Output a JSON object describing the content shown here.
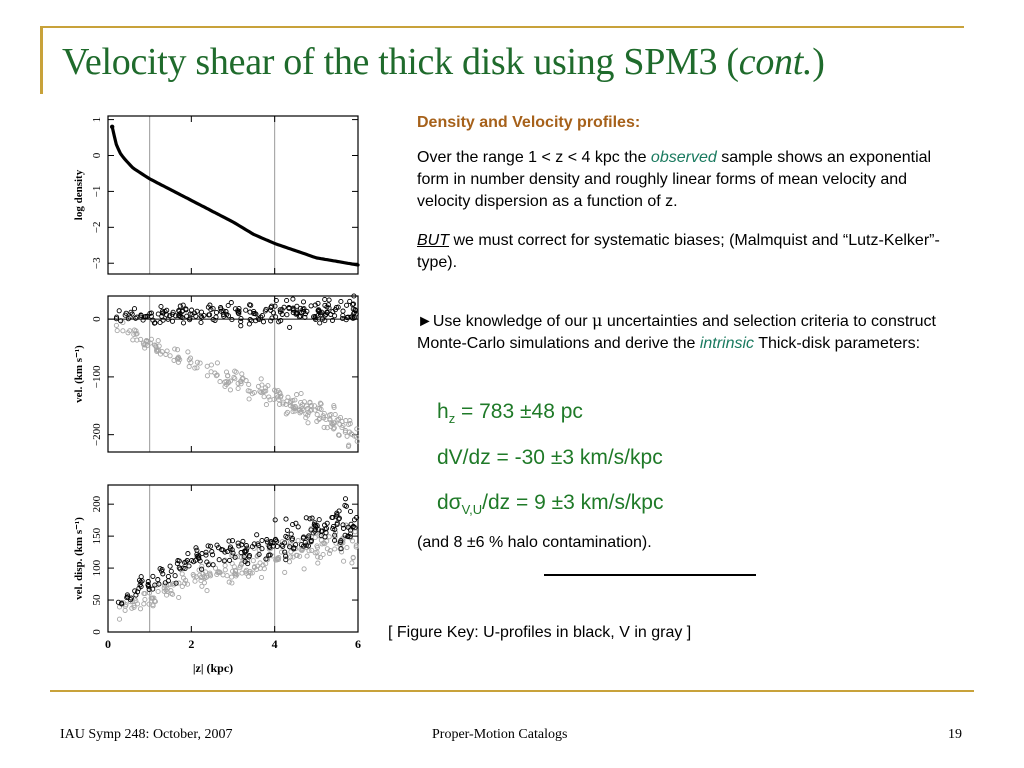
{
  "title": {
    "main": "Velocity shear of the thick disk using SPM3 (",
    "italic": "cont.",
    "close": ")"
  },
  "text": {
    "heading": "Density and Velocity profiles:",
    "p1_a": "Over the range 1 < z < 4 kpc the ",
    "p1_em": "observed",
    "p1_b": " sample shows an exponential form in number density and roughly linear forms of mean velocity and velocity dispersion as a function of z.",
    "p2_em": "BUT",
    "p2_b": " we must correct for systematic biases; (Malmquist and “Lutz-Kelker”-type).",
    "p3_a": "►Use knowledge of our ",
    "p3_mu": "μ",
    "p3_b": " uncertainties and selection criteria to construct Monte-Carlo simulations and derive the ",
    "p3_em": "intrinsic",
    "p3_c": " Thick-disk parameters:",
    "hz_base": "h",
    "hz_sub": "z",
    "hz_val": " = 783 ±48 pc",
    "dvdz": "dV/dz = -30 ±3 km/s/kpc",
    "ds_base": "dσ",
    "ds_sub": "V,U",
    "ds_val": "/dz = 9 ±3 km/s/kpc",
    "halo": "(and 8 ±6 % halo contamination).",
    "key": "[ Figure Key: U-profiles in black, V in gray ]"
  },
  "footer": {
    "left": "IAU Symp 248: October, 2007",
    "center": "Proper-Motion Catalogs",
    "right": "19"
  },
  "colors": {
    "accent": "#c8a23a",
    "title": "#1f6b2c",
    "heading": "#a6611a",
    "param": "#1f7a28",
    "em": "#1a7a5f",
    "series_u": "#000000",
    "series_v": "#a6a6a6"
  },
  "chart_data": [
    {
      "type": "line",
      "ylabel": "log  density",
      "xlim": [
        0,
        6
      ],
      "ylim": [
        -3.3,
        1.1
      ],
      "yticks": [
        1,
        0,
        -1,
        -2,
        -3
      ],
      "vlines": [
        1,
        4
      ],
      "series": [
        {
          "x": [
            0.1,
            0.2,
            0.3,
            0.4,
            0.6,
            0.8,
            1.0,
            1.5,
            2.0,
            2.5,
            3.0,
            3.5,
            4.0,
            4.5,
            5.0,
            5.5,
            6.0
          ],
          "values": [
            0.8,
            0.3,
            0.05,
            -0.1,
            -0.35,
            -0.5,
            -0.65,
            -0.95,
            -1.25,
            -1.55,
            -1.85,
            -2.2,
            -2.45,
            -2.65,
            -2.85,
            -2.95,
            -3.05
          ]
        }
      ]
    },
    {
      "type": "scatter",
      "ylabel": "vel.   (km s⁻¹)",
      "xlim": [
        0,
        6
      ],
      "ylim": [
        -230,
        40
      ],
      "yticks": [
        0,
        -100,
        -200
      ],
      "vlines": [
        1,
        4
      ],
      "hline": 0,
      "series": [
        {
          "name": "U",
          "x": [
            0.2,
            1.0,
            2.0,
            3.0,
            4.0,
            5.0,
            6.0
          ],
          "values": [
            5,
            5,
            8,
            8,
            10,
            12,
            15
          ]
        },
        {
          "name": "V",
          "x": [
            0.2,
            1.0,
            2.0,
            3.0,
            4.0,
            5.0,
            6.0
          ],
          "values": [
            -10,
            -40,
            -75,
            -105,
            -135,
            -165,
            -200
          ]
        }
      ]
    },
    {
      "type": "scatter",
      "ylabel": "vel. disp.   (km s⁻¹)",
      "xlabel": "|z|    (kpc)",
      "xlim": [
        0,
        6
      ],
      "ylim": [
        0,
        230
      ],
      "xticks": [
        0,
        2,
        4,
        6
      ],
      "yticks": [
        0,
        50,
        100,
        150,
        200
      ],
      "vlines": [
        1,
        4
      ],
      "series": [
        {
          "name": "U",
          "x": [
            0.2,
            1.0,
            2.0,
            3.0,
            4.0,
            5.0,
            6.0
          ],
          "values": [
            45,
            80,
            110,
            125,
            140,
            160,
            175
          ]
        },
        {
          "name": "V",
          "x": [
            0.2,
            1.0,
            2.0,
            3.0,
            4.0,
            5.0,
            6.0
          ],
          "values": [
            30,
            55,
            80,
            100,
            115,
            135,
            140
          ]
        }
      ]
    }
  ]
}
